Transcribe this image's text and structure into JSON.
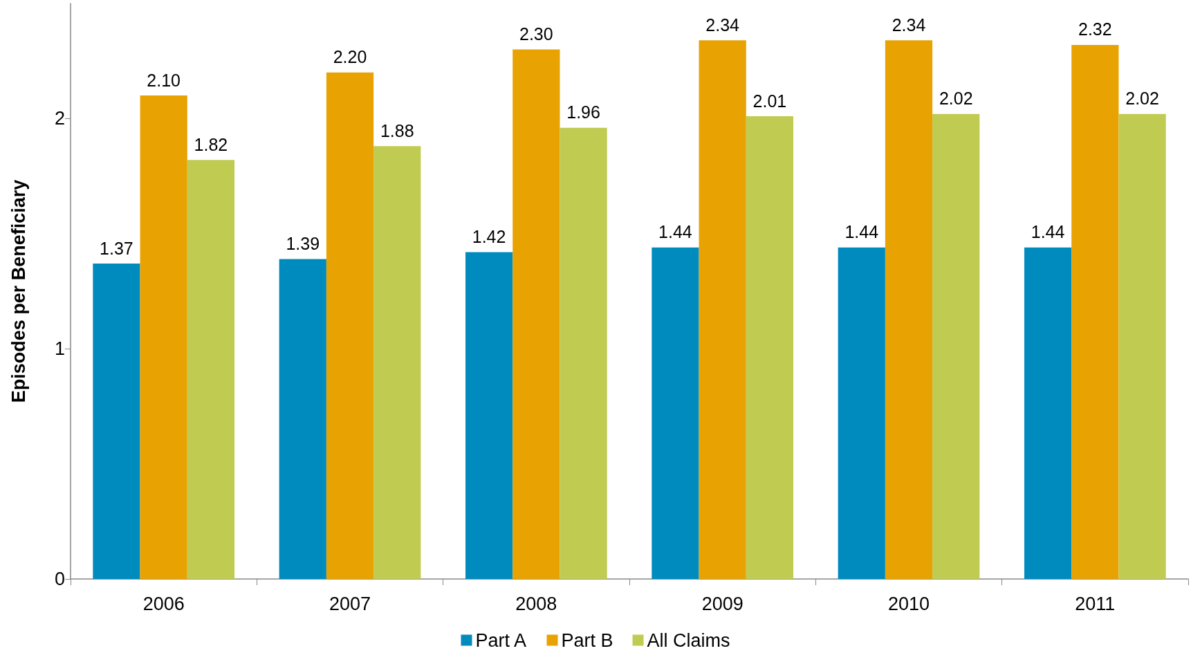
{
  "chart_data": {
    "type": "bar",
    "ylabel": "Episodes per Beneficiary",
    "categories": [
      "2006",
      "2007",
      "2008",
      "2009",
      "2010",
      "2011"
    ],
    "series": [
      {
        "name": "Part A",
        "color": "#008bbf",
        "values": [
          1.37,
          1.39,
          1.42,
          1.44,
          1.44,
          1.44
        ],
        "value_labels": [
          "1.37",
          "1.39",
          "1.42",
          "1.44",
          "1.44",
          "1.44"
        ]
      },
      {
        "name": "Part B",
        "color": "#e8a202",
        "values": [
          2.1,
          2.2,
          2.3,
          2.34,
          2.34,
          2.32
        ],
        "value_labels": [
          "2.10",
          "2.20",
          "2.30",
          "2.34",
          "2.34",
          "2.32"
        ]
      },
      {
        "name": "All Claims",
        "color": "#c0cb52",
        "values": [
          1.82,
          1.88,
          1.96,
          2.01,
          2.02,
          2.02
        ],
        "value_labels": [
          "1.82",
          "1.88",
          "1.96",
          "2.01",
          "2.02",
          "2.02"
        ]
      }
    ],
    "ylim": [
      0,
      2.5
    ],
    "yticks": [
      0,
      1,
      2
    ],
    "grid": false,
    "legend": "bottom"
  }
}
